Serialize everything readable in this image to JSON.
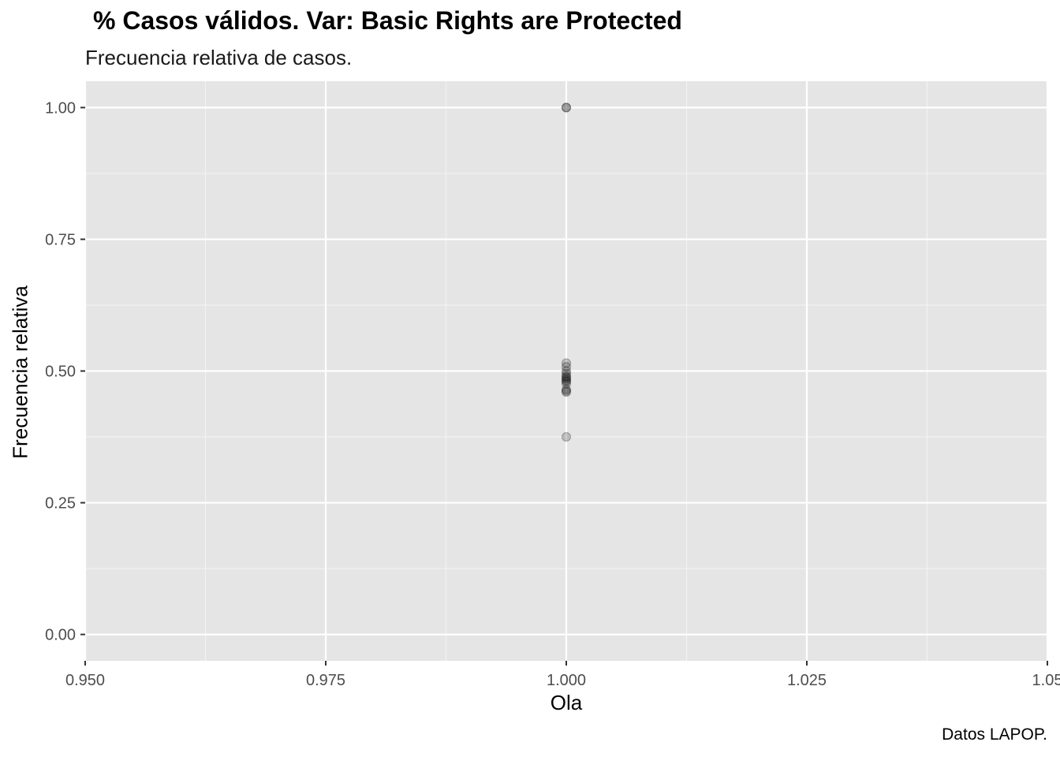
{
  "chart_data": {
    "type": "scatter",
    "title": "% Casos válidos. Var: Basic Rights are Protected",
    "subtitle": "Frecuencia relativa de casos.",
    "caption": "Datos LAPOP.",
    "xlabel": "Ola",
    "ylabel": "Frecuencia relativa",
    "xlim": [
      0.95,
      1.05
    ],
    "ylim": [
      -0.05,
      1.05
    ],
    "x_ticks": [
      0.95,
      0.975,
      1.0,
      1.025,
      1.05
    ],
    "x_tick_labels": [
      "0.950",
      "0.975",
      "1.000",
      "1.025",
      "1.05"
    ],
    "y_ticks": [
      0,
      0.25,
      0.5,
      0.75,
      1.0
    ],
    "y_tick_labels": [
      "0.00",
      "0.25",
      "0.50",
      "0.75",
      "1.00"
    ],
    "grid": true,
    "point_color": "#000000",
    "point_opacity": 0.2,
    "panel_color": "#e5e5e5",
    "x": [
      1.0,
      1.0,
      1.0,
      1.0,
      1.0,
      1.0,
      1.0,
      1.0,
      1.0,
      1.0,
      1.0,
      1.0,
      1.0,
      1.0,
      1.0,
      1.0
    ],
    "y": [
      1.0,
      1.0,
      0.515,
      0.508,
      0.5,
      0.495,
      0.49,
      0.488,
      0.485,
      0.482,
      0.48,
      0.476,
      0.465,
      0.462,
      0.46,
      0.375
    ]
  }
}
